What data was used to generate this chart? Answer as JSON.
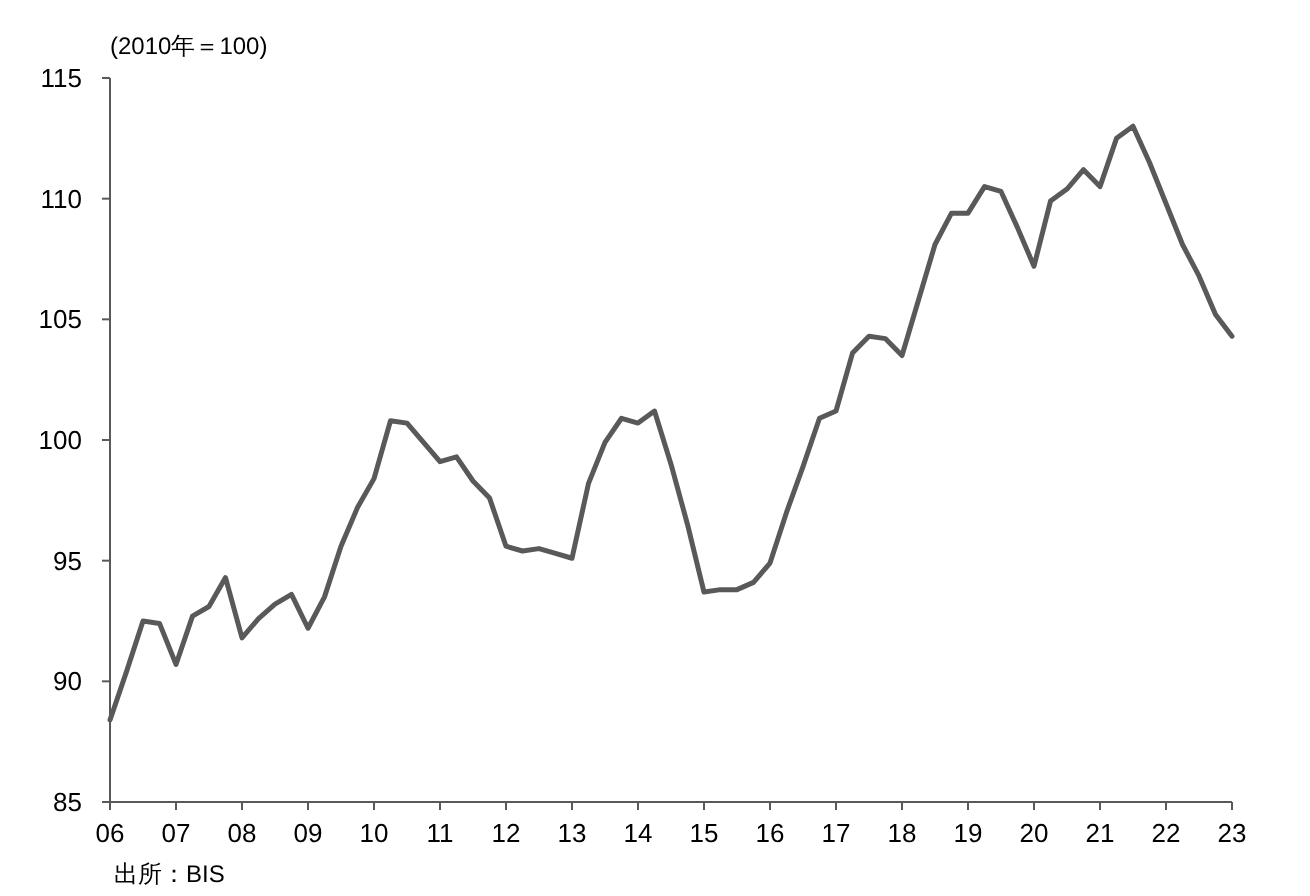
{
  "chart_data": {
    "type": "line",
    "ylabel": "(2010年＝100)",
    "annotations": [
      "出所：BIS"
    ],
    "x": [
      2006,
      2006.25,
      2006.5,
      2006.75,
      2007,
      2007.25,
      2007.5,
      2007.75,
      2008,
      2008.25,
      2008.5,
      2008.75,
      2009,
      2009.25,
      2009.5,
      2009.75,
      2010,
      2010.25,
      2010.5,
      2010.75,
      2011,
      2011.25,
      2011.5,
      2011.75,
      2012,
      2012.25,
      2012.5,
      2012.75,
      2013,
      2013.25,
      2013.5,
      2013.75,
      2014,
      2014.25,
      2014.5,
      2014.75,
      2015,
      2015.25,
      2015.5,
      2015.75,
      2016,
      2016.25,
      2016.5,
      2016.75,
      2017,
      2017.25,
      2017.5,
      2017.75,
      2018,
      2018.25,
      2018.5,
      2018.75,
      2019,
      2019.25,
      2019.5,
      2019.75,
      2020,
      2020.25,
      2020.5,
      2020.75,
      2021,
      2021.25,
      2021.5,
      2021.75,
      2022,
      2022.25,
      2022.5,
      2022.75,
      2023
    ],
    "series": [
      {
        "color": "#595959",
        "values": [
          88.4,
          90.4,
          92.5,
          92.4,
          90.7,
          92.7,
          93.1,
          94.3,
          91.8,
          92.6,
          93.2,
          93.6,
          92.2,
          93.5,
          95.6,
          97.2,
          98.4,
          100.8,
          100.7,
          99.9,
          99.1,
          99.3,
          98.3,
          97.6,
          95.6,
          95.4,
          95.5,
          95.3,
          95.1,
          98.2,
          99.9,
          100.9,
          100.7,
          101.2,
          99.0,
          96.5,
          93.7,
          93.8,
          93.8,
          94.1,
          94.9,
          97.0,
          98.9,
          100.9,
          101.2,
          103.6,
          104.3,
          104.2,
          103.5,
          105.8,
          108.1,
          109.4,
          109.4,
          110.5,
          110.3,
          108.8,
          107.2,
          109.9,
          110.4,
          111.2,
          110.5,
          112.5,
          113.0,
          111.5,
          109.8,
          108.1,
          106.8,
          105.2,
          104.3
        ]
      }
    ],
    "xlim": [
      2006,
      2023
    ],
    "xticks": [
      {
        "value": 2006,
        "label": "06"
      },
      {
        "value": 2007,
        "label": "07"
      },
      {
        "value": 2008,
        "label": "08"
      },
      {
        "value": 2009,
        "label": "09"
      },
      {
        "value": 2010,
        "label": "10"
      },
      {
        "value": 2011,
        "label": "11"
      },
      {
        "value": 2012,
        "label": "12"
      },
      {
        "value": 2013,
        "label": "13"
      },
      {
        "value": 2014,
        "label": "14"
      },
      {
        "value": 2015,
        "label": "15"
      },
      {
        "value": 2016,
        "label": "16"
      },
      {
        "value": 2017,
        "label": "17"
      },
      {
        "value": 2018,
        "label": "18"
      },
      {
        "value": 2019,
        "label": "19"
      },
      {
        "value": 2020,
        "label": "20"
      },
      {
        "value": 2021,
        "label": "21"
      },
      {
        "value": 2022,
        "label": "22"
      },
      {
        "value": 2023,
        "label": "23"
      }
    ],
    "ylim": [
      85,
      115
    ],
    "yticks": [
      85,
      90,
      95,
      100,
      105,
      110,
      115
    ],
    "grid": false,
    "marker": "none",
    "line_style": "solid"
  }
}
